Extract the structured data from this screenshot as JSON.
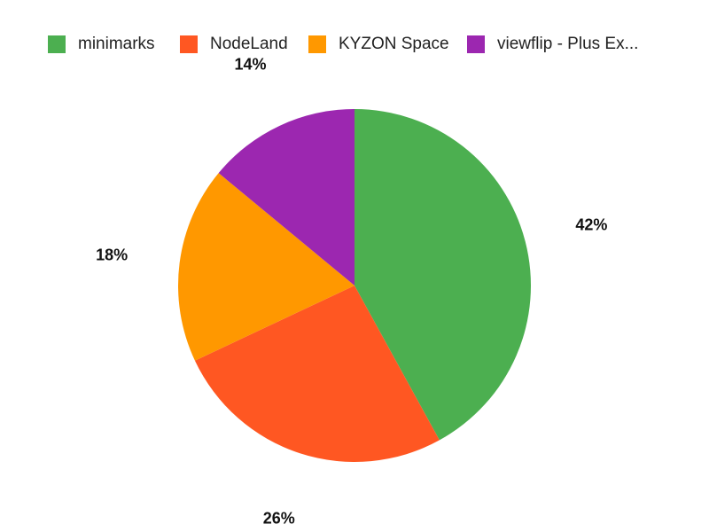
{
  "chart_data": {
    "type": "pie",
    "title": "",
    "legend_position": "top",
    "labels": [
      "minimarks",
      "NodeLand",
      "KYZON Space",
      "viewflip - Plus Ex..."
    ],
    "values": [
      42,
      26,
      18,
      14
    ],
    "percent_labels": [
      "42%",
      "26%",
      "18%",
      "14%"
    ],
    "colors": [
      "#4CAF50",
      "#FF5722",
      "#FF9800",
      "#9C27B0"
    ]
  }
}
